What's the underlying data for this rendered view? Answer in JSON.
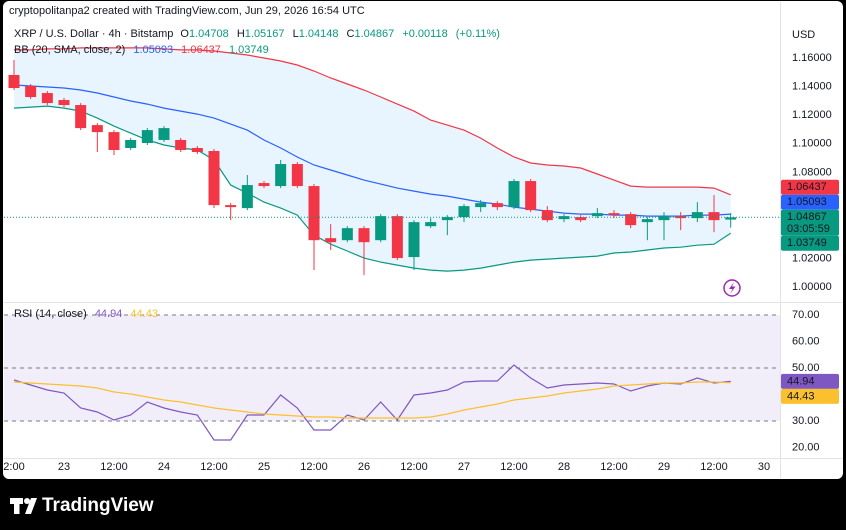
{
  "header": "cryptopolitanpa2 created with TradingView.com, Jun 29, 2026 16:54 UTC",
  "footer": {
    "brand": "TradingView"
  },
  "chart_data": {
    "type": "candlestick",
    "title": "XRP / U.S. Dollar · 4h · Bitstamp",
    "ohlc_labels": [
      "O",
      "H",
      "L",
      "C"
    ],
    "change": {
      "value": 0.00118,
      "label": "+0.00118"
    },
    "change_pct": {
      "value": 0.11,
      "label": "(+0.11%)"
    },
    "currency": "USD",
    "countdown": "03:05:59",
    "up_color": "#089981",
    "down_color": "#f23645",
    "categories": [
      "2:00",
      null,
      null,
      "23",
      null,
      null,
      "12:00",
      null,
      null,
      "24",
      null,
      null,
      "12:00",
      null,
      null,
      "25",
      null,
      null,
      "12:00",
      null,
      null,
      "26",
      null,
      null,
      "12:00",
      null,
      null,
      "27",
      null,
      null,
      "12:00",
      null,
      null,
      "28",
      null,
      null,
      "12:00",
      null,
      null,
      "29",
      null,
      null,
      "12:00",
      null,
      null,
      "30"
    ],
    "open": [
      1.1481,
      1.1404,
      1.1355,
      1.1306,
      1.1271,
      1.1131,
      1.1082,
      1.0971,
      1.1006,
      1.1027,
      1.1027,
      1.0971,
      1.095,
      1.0572,
      1.0551,
      1.0726,
      1.0705,
      1.0859,
      1.0705,
      1.0341,
      1.0327,
      1.0411,
      1.0327,
      1.0495,
      1.0209,
      1.0425,
      1.0467,
      1.0488,
      1.0558,
      1.0586,
      1.0558,
      1.074,
      1.0537,
      1.0474,
      1.0488,
      1.0495,
      1.0516,
      1.0509,
      1.0453,
      1.0467,
      1.0495,
      1.0481,
      1.0523,
      1.04708,
      null,
      null
    ],
    "high": [
      1.1586,
      1.1418,
      1.1369,
      1.132,
      1.1285,
      1.1145,
      1.1096,
      1.1041,
      1.111,
      1.1124,
      1.1041,
      1.0985,
      1.0964,
      1.0586,
      1.0782,
      1.074,
      1.0887,
      1.0873,
      1.0719,
      1.0439,
      1.0425,
      1.0425,
      1.0509,
      1.0509,
      1.0467,
      1.0481,
      1.0502,
      1.0579,
      1.0607,
      1.06,
      1.0754,
      1.0754,
      1.0565,
      1.0509,
      1.0502,
      1.0551,
      1.0537,
      1.0523,
      1.0488,
      1.0523,
      1.0523,
      1.0593,
      1.0642,
      1.05167,
      null,
      null
    ],
    "low": [
      1.1376,
      1.1313,
      1.1271,
      1.1257,
      1.1096,
      1.0943,
      1.0922,
      1.0957,
      1.0992,
      1.1013,
      1.0943,
      1.0929,
      1.0551,
      1.0467,
      1.0537,
      1.0691,
      1.0691,
      1.0691,
      1.0118,
      1.0258,
      1.0313,
      1.0083,
      1.0313,
      1.0188,
      1.0118,
      1.0411,
      1.0362,
      1.0453,
      1.0523,
      1.0537,
      1.0544,
      1.0523,
      1.0453,
      1.0453,
      1.0453,
      1.0481,
      1.0481,
      1.0411,
      1.0327,
      1.0327,
      1.0397,
      1.0453,
      1.0383,
      1.04148,
      null,
      null
    ],
    "close": [
      1.139,
      1.1327,
      1.1285,
      1.1271,
      1.111,
      1.1082,
      1.0957,
      1.1027,
      1.1096,
      1.111,
      1.0957,
      1.0943,
      1.0572,
      1.0558,
      1.0712,
      1.0705,
      1.0859,
      1.0705,
      1.0327,
      1.0313,
      1.0411,
      1.0313,
      1.0495,
      1.0202,
      1.0453,
      1.0453,
      1.0488,
      1.0565,
      1.0586,
      1.0558,
      1.074,
      1.0537,
      1.0467,
      1.0495,
      1.0467,
      1.0516,
      1.0502,
      1.0432,
      1.0474,
      1.0495,
      1.0481,
      1.0523,
      1.0467,
      1.04867,
      null,
      null
    ],
    "ylim": [
      0.9895,
      1.1991
    ],
    "yticks": [
      {
        "value": 1.0,
        "label": "1.00000"
      },
      {
        "value": 1.02,
        "label": "1.02000"
      },
      {
        "value": 1.08,
        "label": "1.08000"
      },
      {
        "value": 1.1,
        "label": "1.10000"
      },
      {
        "value": 1.12,
        "label": "1.12000"
      },
      {
        "value": 1.14,
        "label": "1.14000"
      },
      {
        "value": 1.16,
        "label": "1.16000"
      }
    ],
    "bb": {
      "title": "BB (20, SMA, close, 2)",
      "fill": "rgba(33,150,243,0.10)",
      "basis": {
        "color": "#2962ff",
        "values": [
          1.1411,
          1.1404,
          1.1397,
          1.139,
          1.1376,
          1.1355,
          1.1327,
          1.1299,
          1.1278,
          1.125,
          1.1229,
          1.1208,
          1.118,
          1.1138,
          1.1096,
          1.1027,
          1.0971,
          1.0908,
          1.0852,
          1.0817,
          1.0782,
          1.0747,
          1.0719,
          1.0691,
          1.067,
          1.0649,
          1.0635,
          1.0614,
          1.0593,
          1.0579,
          1.0558,
          1.0544,
          1.053,
          1.0516,
          1.0509,
          1.0509,
          1.0502,
          1.0502,
          1.0495,
          1.0495,
          1.0495,
          1.0502,
          1.0502,
          1.05093,
          null,
          null
        ]
      },
      "upper": {
        "color": "#f23645",
        "values": [
          1.1656,
          1.1656,
          1.1663,
          1.1663,
          1.167,
          1.167,
          1.167,
          1.167,
          1.167,
          1.1663,
          1.1656,
          1.1656,
          1.1649,
          1.1635,
          1.1621,
          1.16,
          1.1579,
          1.1551,
          1.1509,
          1.146,
          1.1418,
          1.1376,
          1.1327,
          1.1278,
          1.1229,
          1.1166,
          1.1131,
          1.1096,
          1.104,
          1.0971,
          1.0908,
          1.0866,
          1.0852,
          1.0845,
          1.0831,
          1.0789,
          1.0747,
          1.0705,
          1.0698,
          1.0698,
          1.0698,
          1.0698,
          1.0691,
          1.06437,
          null,
          null
        ]
      },
      "lower": {
        "color": "#089981",
        "values": [
          1.125,
          1.1257,
          1.1264,
          1.125,
          1.1229,
          1.118,
          1.1124,
          1.1075,
          1.1027,
          1.0992,
          1.0971,
          1.0957,
          1.0887,
          1.0712,
          1.0656,
          1.0593,
          1.0551,
          1.0502,
          1.0362,
          1.0299,
          1.0251,
          1.0202,
          1.0174,
          1.0153,
          1.0132,
          1.0118,
          1.0111,
          1.0118,
          1.0132,
          1.0153,
          1.0174,
          1.0188,
          1.0195,
          1.0202,
          1.0209,
          1.0216,
          1.0237,
          1.0244,
          1.0258,
          1.0272,
          1.0278,
          1.0292,
          1.0299,
          1.03749,
          null,
          null
        ]
      }
    },
    "rsi": {
      "type": "line",
      "title": "RSI (14, close)",
      "ylim": [
        16.04,
        74.9
      ],
      "yticks": [
        {
          "value": 20,
          "label": "20.00"
        },
        {
          "value": 30,
          "label": "30.00"
        },
        {
          "value": 50,
          "label": "50.00"
        },
        {
          "value": 60,
          "label": "60.00"
        },
        {
          "value": 70,
          "label": "70.00"
        }
      ],
      "levels": [
        70,
        50,
        30
      ],
      "band": [
        30,
        70
      ],
      "band_fill": "rgba(126,87,194,0.10)",
      "series": [
        {
          "color": "#7e57c2",
          "values": [
            45.47,
            43.58,
            41.7,
            40.57,
            34.91,
            33.4,
            30.38,
            32.26,
            37.17,
            34.91,
            33.4,
            32.26,
            22.83,
            22.83,
            32.26,
            32.26,
            39.81,
            34.91,
            26.6,
            26.6,
            32.26,
            30.38,
            37.17,
            30.38,
            39.81,
            40.57,
            41.7,
            44.72,
            45.09,
            45.09,
            51.13,
            46.23,
            42.45,
            43.58,
            43.96,
            44.34,
            43.96,
            41.32,
            43.21,
            44.34,
            43.96,
            46.23,
            44.34,
            44.94,
            null,
            null
          ]
        },
        {
          "color": "#fbc02d",
          "values": [
            44.72,
            44.34,
            43.96,
            43.58,
            43.21,
            42.45,
            40.94,
            40.19,
            39.06,
            37.92,
            37.17,
            36.04,
            34.91,
            34.15,
            33.4,
            32.64,
            32.26,
            31.89,
            31.51,
            31.51,
            31.13,
            31.13,
            31.13,
            31.13,
            31.13,
            31.51,
            32.64,
            34.15,
            35.28,
            36.42,
            37.92,
            38.68,
            39.43,
            40.57,
            41.32,
            42.08,
            43.21,
            43.58,
            43.96,
            44.34,
            44.34,
            44.72,
            44.72,
            44.43,
            null,
            null
          ]
        }
      ]
    }
  }
}
